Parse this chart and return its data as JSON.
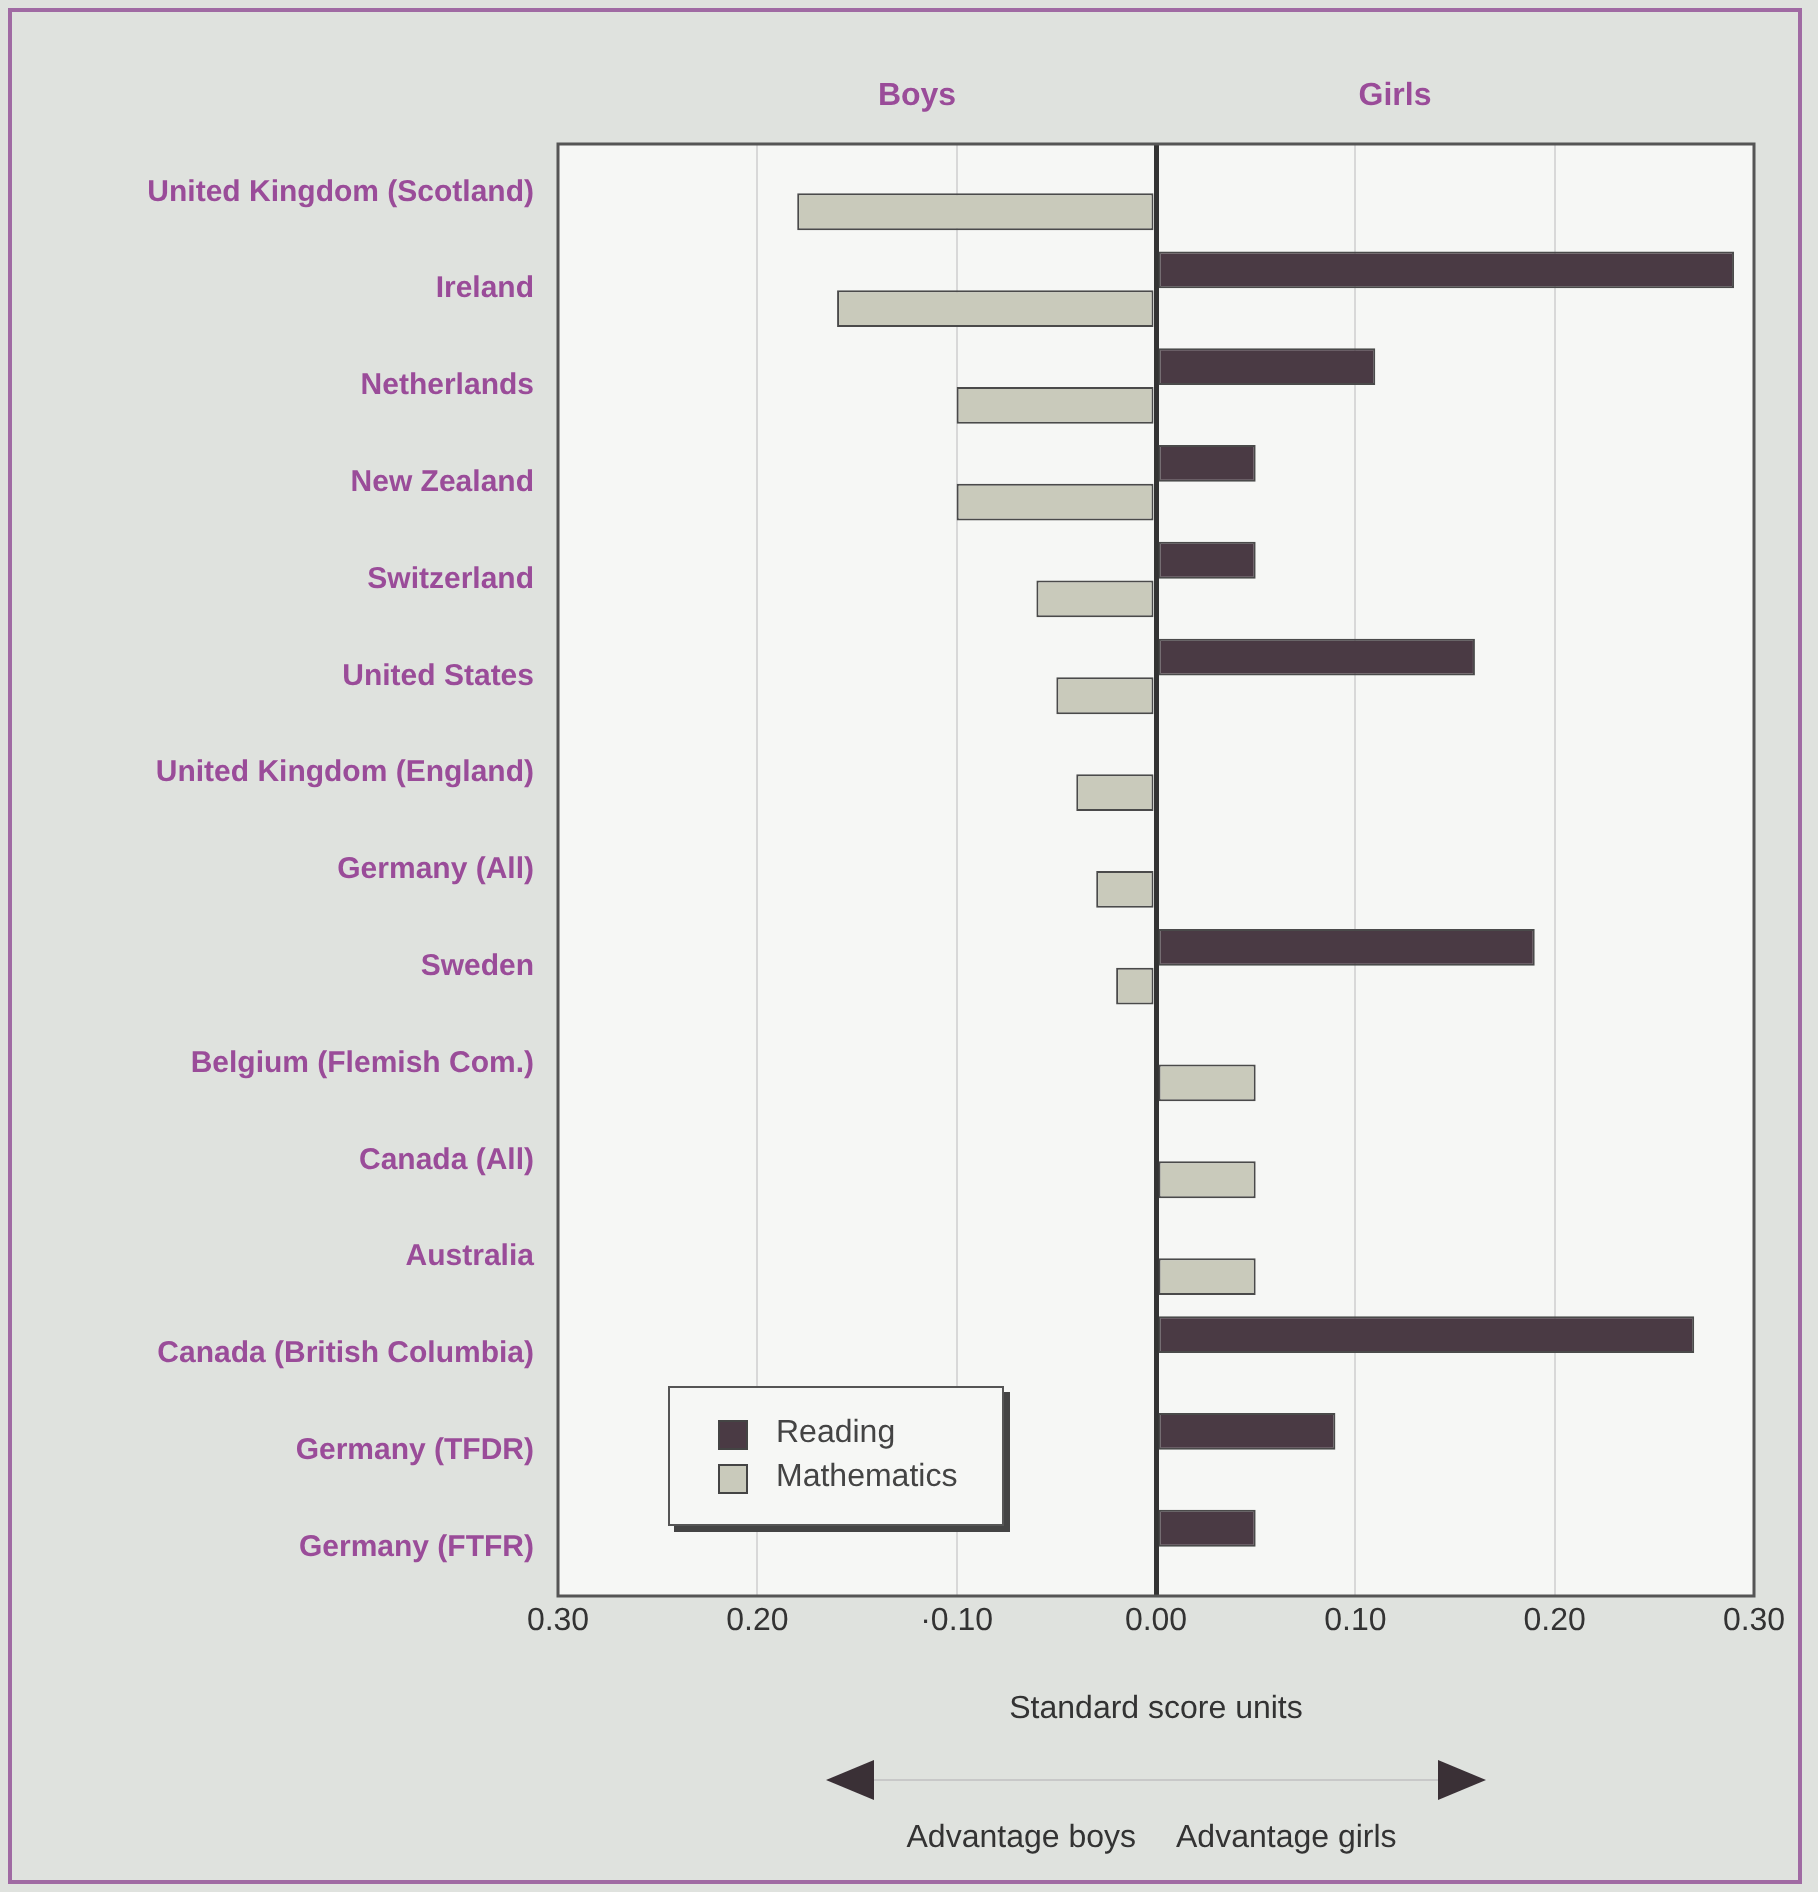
{
  "chart_data": {
    "type": "bar",
    "orientation": "horizontal",
    "xlabel": "Standard score units",
    "categories": [
      "United Kingdom (Scotland)",
      "Ireland",
      "Netherlands",
      "New Zealand",
      "Switzerland",
      "United States",
      "United Kingdom (England)",
      "Germany (All)",
      "Sweden",
      "Belgium (Flemish Com.)",
      "Canada (All)",
      "Australia",
      "Canada (British Columbia)",
      "Germany (TFDR)",
      "Germany (FTFR)"
    ],
    "series": [
      {
        "name": "Reading",
        "color": "#4a3a44",
        "values": [
          null,
          0.29,
          0.11,
          0.05,
          0.05,
          0.16,
          null,
          null,
          0.19,
          null,
          null,
          null,
          0.27,
          0.09,
          0.05
        ]
      },
      {
        "name": "Mathematics",
        "color": "#c9cabb",
        "values": [
          -0.18,
          -0.16,
          -0.1,
          -0.1,
          -0.06,
          -0.05,
          -0.04,
          -0.03,
          -0.02,
          0.05,
          0.05,
          0.05,
          null,
          null,
          null
        ]
      }
    ],
    "xlim": [
      -0.3,
      0.3
    ],
    "xticks": [
      {
        "value": -0.3,
        "label": "0.30"
      },
      {
        "value": -0.2,
        "label": "0.20"
      },
      {
        "value": -0.1,
        "label": "·0.10"
      },
      {
        "value": 0,
        "label": "0.00"
      },
      {
        "value": 0.1,
        "label": "0.10"
      },
      {
        "value": 0.2,
        "label": "0.20"
      },
      {
        "value": 0.3,
        "label": "0.30"
      }
    ],
    "grid": "x",
    "legend": "bottom left",
    "annotations": [
      "Boys",
      "Girls",
      "Advantage boys",
      "Advantage girls"
    ]
  }
}
